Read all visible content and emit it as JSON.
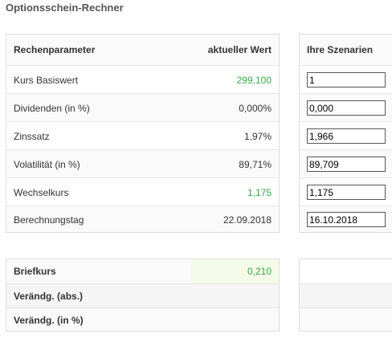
{
  "page": {
    "title": "Optionsschein-Rechner"
  },
  "params": {
    "header_param": "Rechenparameter",
    "header_value": "aktueller Wert",
    "rows": [
      {
        "label": "Kurs Basiswert",
        "value": "299,100"
      },
      {
        "label": "Dividenden (in %)",
        "value": "0,000%"
      },
      {
        "label": "Zinssatz",
        "value": "1,97%"
      },
      {
        "label": "Volatilität (in %)",
        "value": "89,71%"
      },
      {
        "label": "Wechselkurs",
        "value": "1,175"
      },
      {
        "label": "Berechnungstag",
        "value": "22.09.2018"
      }
    ]
  },
  "scenarios": {
    "header": "Ihre Szenarien",
    "inputs": [
      "1",
      "0,000",
      "1,966",
      "89,709",
      "1,175",
      "16.10.2018"
    ]
  },
  "results": {
    "rows": [
      {
        "label": "Briefkurs",
        "value": "0,210"
      },
      {
        "label": "Verändg. (abs.)",
        "value": ""
      },
      {
        "label": "Verändg. (in %)",
        "value": ""
      }
    ]
  },
  "colors": {
    "positive": "#3aa845",
    "highlight": "#f4fbe8",
    "border": "#dddddd"
  }
}
